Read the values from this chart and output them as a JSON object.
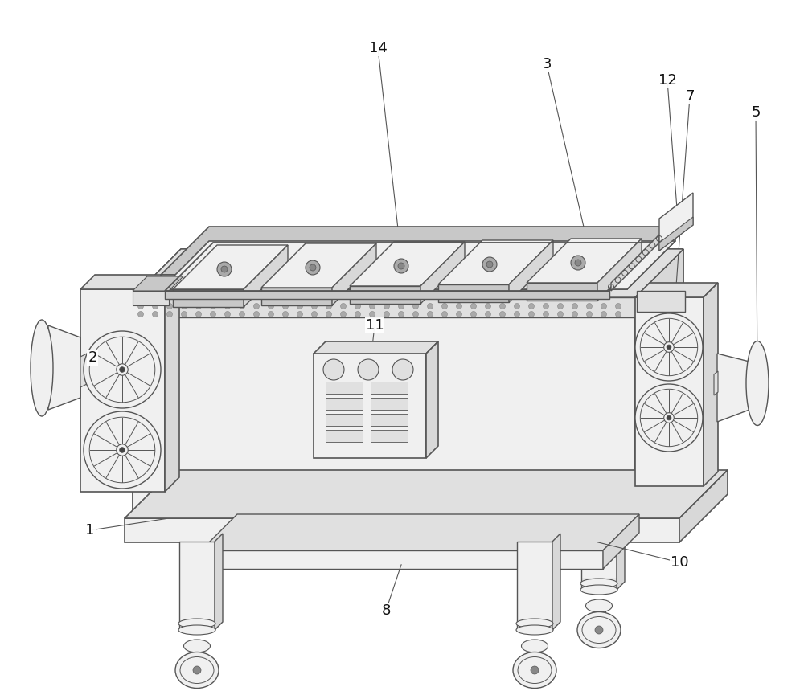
{
  "bg_color": "#ffffff",
  "lc": "#555555",
  "fill_white": "#ffffff",
  "fill_light": "#f0f0f0",
  "fill_med": "#e0e0e0",
  "fill_dark": "#c8c8c8",
  "fill_side": "#d8d8d8",
  "figsize": [
    10.0,
    8.6
  ],
  "dpi": 100
}
